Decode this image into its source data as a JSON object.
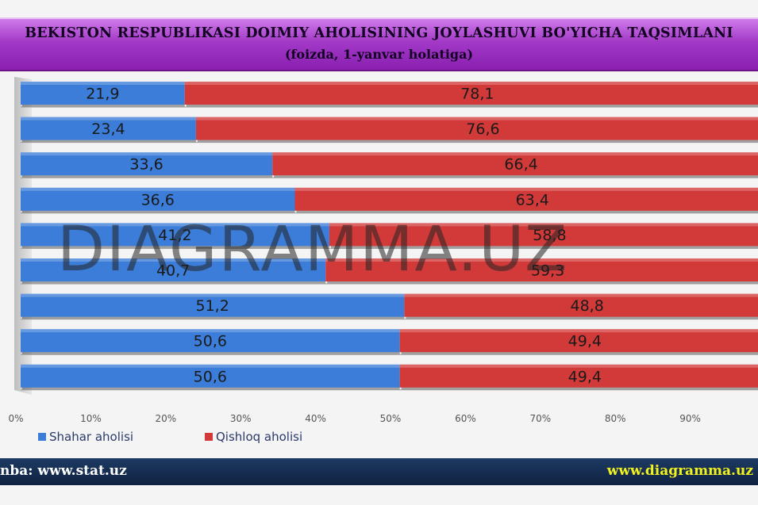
{
  "title": {
    "line1": "BEKISTON RESPUBLIKASI DOIMIY AHOLISINING JOYLASHUVI BO'YICHA TAQSIMLANI",
    "line2": "(foizda, 1-yanvar holatiga)"
  },
  "chart_data": {
    "type": "bar",
    "orientation": "horizontal",
    "stacked": true,
    "percent_stacked": true,
    "categories": [
      "",
      "",
      "",
      "",
      "",
      "",
      "",
      "",
      ""
    ],
    "series": [
      {
        "name": "Shahar aholisi",
        "color": "#3b7dd8",
        "values": [
          21.9,
          23.4,
          33.6,
          36.6,
          41.2,
          40.7,
          51.2,
          50.6,
          50.6
        ]
      },
      {
        "name": "Qishloq aholisi",
        "color": "#d23a3a",
        "values": [
          78.1,
          76.6,
          66.4,
          63.4,
          58.8,
          59.3,
          48.8,
          49.4,
          49.4
        ]
      }
    ],
    "data_labels": [
      [
        "21,9",
        "23,4",
        "33,6",
        "36,6",
        "41,2",
        "40,7",
        "51,2",
        "50,6",
        "50,6"
      ],
      [
        "78,1",
        "76,6",
        "66,4",
        "63,4",
        "58,8",
        "59,3",
        "48,8",
        "49,4",
        "49,4"
      ]
    ],
    "x_ticks": [
      "0%",
      "10%",
      "20%",
      "30%",
      "40%",
      "50%",
      "60%",
      "70%",
      "80%",
      "90%"
    ],
    "xlim": [
      0,
      100
    ],
    "legend_position": "bottom-left",
    "grid": false
  },
  "footer": {
    "source": "nba: www.stat.uz",
    "site": "www.diagramma.uz"
  },
  "watermark": "DIAGRAMMA.UZ"
}
